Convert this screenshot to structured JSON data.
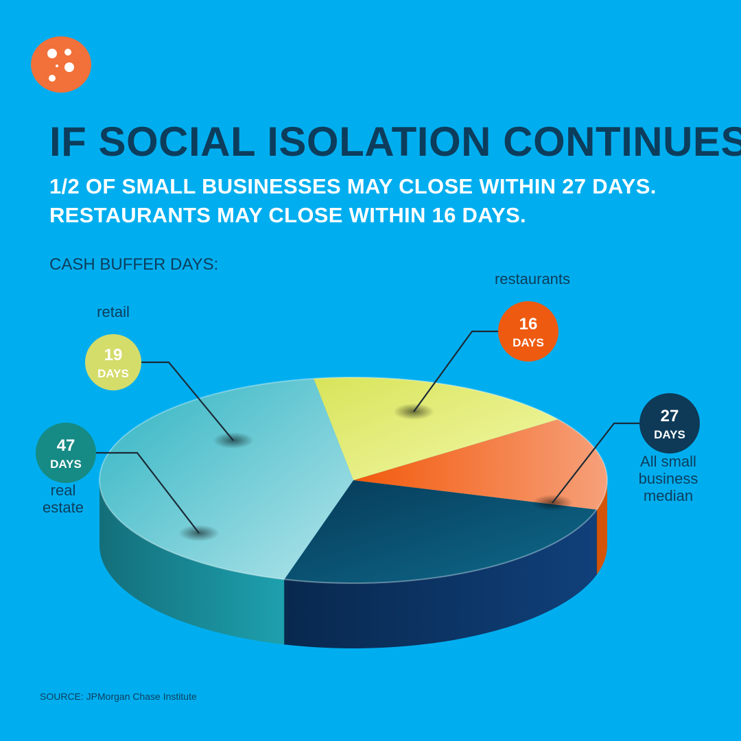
{
  "header": {
    "headline": "IF SOCIAL ISOLATION CONTINUES,",
    "line1": "1/2 OF SMALL BUSINESSES MAY CLOSE WITHIN 27 DAYS.",
    "line2": "RESTAURANTS MAY CLOSE WITHIN 16 DAYS."
  },
  "chart_caption": "CASH BUFFER DAYS:",
  "source": "SOURCE: JPMorgan Chase Institute",
  "logo_icon": "dots-logo-icon",
  "chart_data": {
    "type": "pie",
    "unit": "DAYS",
    "slices": [
      {
        "label": "retail",
        "value": 19,
        "unit": "DAYS",
        "color": "#e6ee82",
        "bubble_color": "#d4dc6a"
      },
      {
        "label": "restaurants",
        "value": 16,
        "unit": "DAYS",
        "color": "#f26b21",
        "bubble_color": "#ee5a10"
      },
      {
        "label": "All small business median",
        "value": 27,
        "unit": "DAYS",
        "color": "#0a4868",
        "bubble_color": "#0e3a58"
      },
      {
        "label": "real estate",
        "value": 47,
        "unit": "DAYS",
        "color": "#5cc6d0",
        "bubble_color": "#168a84"
      }
    ]
  }
}
